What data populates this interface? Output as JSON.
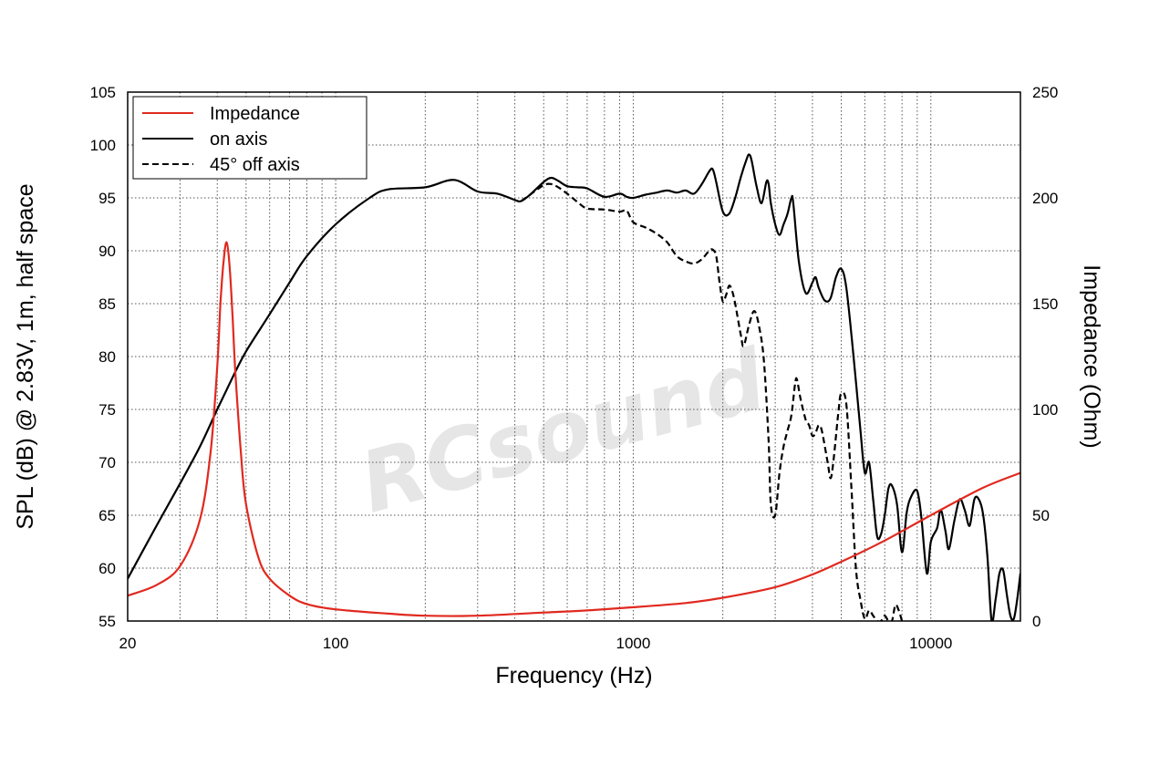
{
  "watermark": "RCsound",
  "chart_data": {
    "type": "line",
    "xlabel": "Frequency (Hz)",
    "ylabel_left": "SPL (dB) @ 2.83V, 1m, half space",
    "ylabel_right": "Impedance (Ohm)",
    "x_scale": "log",
    "xlim": [
      20,
      20000
    ],
    "ylim_left": [
      55,
      105
    ],
    "ylim_right": [
      0,
      250
    ],
    "x_ticks": [
      20,
      100,
      1000,
      10000
    ],
    "x_tick_labels": [
      "20",
      "100",
      "1000",
      "10000"
    ],
    "y_ticks_left": [
      55,
      60,
      65,
      70,
      75,
      80,
      85,
      90,
      95,
      100,
      105
    ],
    "y_tick_labels_left": [
      "55",
      "60",
      "65",
      "70",
      "75",
      "80",
      "85",
      "90",
      "95",
      "100",
      "105"
    ],
    "y_ticks_right": [
      0,
      50,
      100,
      150,
      200,
      250
    ],
    "y_tick_labels_right": [
      "0",
      "50",
      "100",
      "150",
      "200",
      "250"
    ],
    "grid": true,
    "legend_position": "top-left",
    "series": [
      {
        "name": "Impedance",
        "axis": "right",
        "color": "#e0291f",
        "style": "solid",
        "points": [
          [
            20,
            12
          ],
          [
            25,
            17
          ],
          [
            30,
            26
          ],
          [
            35,
            48
          ],
          [
            38,
            80
          ],
          [
            40,
            120
          ],
          [
            41,
            150
          ],
          [
            42,
            170
          ],
          [
            43,
            179
          ],
          [
            44,
            168
          ],
          [
            45,
            145
          ],
          [
            46,
            118
          ],
          [
            48,
            80
          ],
          [
            50,
            55
          ],
          [
            55,
            30
          ],
          [
            60,
            20
          ],
          [
            70,
            12
          ],
          [
            80,
            8
          ],
          [
            100,
            5.5
          ],
          [
            150,
            3.5
          ],
          [
            200,
            2.5
          ],
          [
            300,
            2.5
          ],
          [
            500,
            4
          ],
          [
            700,
            5
          ],
          [
            1000,
            6.5
          ],
          [
            1500,
            8.5
          ],
          [
            2000,
            11
          ],
          [
            3000,
            16
          ],
          [
            4000,
            22
          ],
          [
            5000,
            28
          ],
          [
            7000,
            38
          ],
          [
            10000,
            50
          ],
          [
            15000,
            63
          ],
          [
            20000,
            70
          ]
        ]
      },
      {
        "name": "on axis",
        "axis": "left",
        "color": "#000000",
        "style": "solid",
        "points": [
          [
            20,
            59
          ],
          [
            25,
            64
          ],
          [
            30,
            68
          ],
          [
            35,
            71.5
          ],
          [
            40,
            75
          ],
          [
            45,
            78
          ],
          [
            50,
            80.5
          ],
          [
            60,
            84
          ],
          [
            70,
            87
          ],
          [
            80,
            89.5
          ],
          [
            100,
            92.5
          ],
          [
            130,
            95
          ],
          [
            150,
            95.8
          ],
          [
            200,
            96
          ],
          [
            250,
            96.7
          ],
          [
            300,
            95.6
          ],
          [
            350,
            95.4
          ],
          [
            400,
            94.8
          ],
          [
            420,
            94.7
          ],
          [
            450,
            95.3
          ],
          [
            500,
            96.5
          ],
          [
            530,
            96.9
          ],
          [
            560,
            96.6
          ],
          [
            600,
            96.1
          ],
          [
            650,
            96
          ],
          [
            700,
            95.9
          ],
          [
            800,
            95.1
          ],
          [
            900,
            95.4
          ],
          [
            950,
            95.1
          ],
          [
            1000,
            95
          ],
          [
            1100,
            95.3
          ],
          [
            1200,
            95.5
          ],
          [
            1300,
            95.7
          ],
          [
            1400,
            95.5
          ],
          [
            1500,
            95.7
          ],
          [
            1600,
            95.4
          ],
          [
            1700,
            96.3
          ],
          [
            1800,
            97.5
          ],
          [
            1850,
            97.7
          ],
          [
            1900,
            96.5
          ],
          [
            2000,
            93.7
          ],
          [
            2100,
            93.5
          ],
          [
            2200,
            95
          ],
          [
            2300,
            97
          ],
          [
            2400,
            98.6
          ],
          [
            2450,
            99.1
          ],
          [
            2500,
            98.5
          ],
          [
            2600,
            96
          ],
          [
            2700,
            94.5
          ],
          [
            2800,
            96.5
          ],
          [
            2850,
            96.3
          ],
          [
            2900,
            94.5
          ],
          [
            3000,
            92.5
          ],
          [
            3100,
            91.5
          ],
          [
            3200,
            92.5
          ],
          [
            3300,
            93.5
          ],
          [
            3400,
            95
          ],
          [
            3450,
            94.5
          ],
          [
            3600,
            89
          ],
          [
            3800,
            86
          ],
          [
            4000,
            87
          ],
          [
            4100,
            87.5
          ],
          [
            4200,
            86.5
          ],
          [
            4400,
            85.3
          ],
          [
            4600,
            85.5
          ],
          [
            4800,
            87.5
          ],
          [
            5000,
            88.3
          ],
          [
            5200,
            86.5
          ],
          [
            5500,
            80
          ],
          [
            5800,
            73
          ],
          [
            6000,
            69
          ],
          [
            6200,
            70
          ],
          [
            6400,
            66.5
          ],
          [
            6600,
            63
          ],
          [
            6800,
            63.2
          ],
          [
            7000,
            65
          ],
          [
            7200,
            67.5
          ],
          [
            7400,
            67.8
          ],
          [
            7700,
            66
          ],
          [
            8000,
            61.5
          ],
          [
            8300,
            65.3
          ],
          [
            8600,
            66.8
          ],
          [
            9000,
            67.3
          ],
          [
            9300,
            64.7
          ],
          [
            9700,
            59.5
          ],
          [
            10000,
            62.5
          ],
          [
            10500,
            63.8
          ],
          [
            10800,
            65.5
          ],
          [
            11200,
            63.5
          ],
          [
            11500,
            61.8
          ],
          [
            12000,
            64.5
          ],
          [
            12500,
            66.5
          ],
          [
            13000,
            65.5
          ],
          [
            13500,
            64
          ],
          [
            14000,
            66.5
          ],
          [
            14500,
            66.5
          ],
          [
            15000,
            65
          ],
          [
            15500,
            61
          ],
          [
            16000,
            55
          ],
          [
            16500,
            57
          ],
          [
            17000,
            59.5
          ],
          [
            17500,
            59.8
          ],
          [
            18000,
            57.5
          ],
          [
            18500,
            55.5
          ],
          [
            19000,
            55.2
          ],
          [
            19500,
            57
          ],
          [
            20000,
            59.5
          ]
        ]
      },
      {
        "name": "45° off axis",
        "axis": "left",
        "color": "#000000",
        "style": "dashed",
        "points": [
          [
            420,
            94.7
          ],
          [
            450,
            95.3
          ],
          [
            500,
            96.2
          ],
          [
            530,
            96.3
          ],
          [
            560,
            96
          ],
          [
            600,
            95.4
          ],
          [
            650,
            94.6
          ],
          [
            700,
            94
          ],
          [
            800,
            93.9
          ],
          [
            900,
            93.7
          ],
          [
            950,
            93.8
          ],
          [
            1000,
            92.7
          ],
          [
            1100,
            92.2
          ],
          [
            1200,
            91.6
          ],
          [
            1300,
            90.8
          ],
          [
            1400,
            89.5
          ],
          [
            1500,
            89
          ],
          [
            1600,
            88.8
          ],
          [
            1700,
            89.2
          ],
          [
            1800,
            90
          ],
          [
            1850,
            90.1
          ],
          [
            1900,
            89.5
          ],
          [
            1950,
            87
          ],
          [
            2000,
            85.2
          ],
          [
            2050,
            85.8
          ],
          [
            2100,
            86.7
          ],
          [
            2150,
            86.2
          ],
          [
            2200,
            85
          ],
          [
            2300,
            82
          ],
          [
            2350,
            81
          ],
          [
            2450,
            83
          ],
          [
            2550,
            84.3
          ],
          [
            2650,
            82.8
          ],
          [
            2750,
            79.5
          ],
          [
            2850,
            72
          ],
          [
            2900,
            66
          ],
          [
            3000,
            65
          ],
          [
            3100,
            69
          ],
          [
            3200,
            71.5
          ],
          [
            3300,
            73
          ],
          [
            3400,
            74.5
          ],
          [
            3500,
            77.5
          ],
          [
            3550,
            77.8
          ],
          [
            3650,
            76
          ],
          [
            3800,
            74
          ],
          [
            3900,
            73.5
          ],
          [
            4000,
            72.5
          ],
          [
            4100,
            72.8
          ],
          [
            4200,
            73.5
          ],
          [
            4300,
            73
          ],
          [
            4500,
            70
          ],
          [
            4600,
            68.5
          ],
          [
            4700,
            70
          ],
          [
            4900,
            75
          ],
          [
            5000,
            76.5
          ],
          [
            5200,
            75.5
          ],
          [
            5400,
            68
          ],
          [
            5600,
            60
          ],
          [
            5800,
            57
          ],
          [
            6000,
            55.2
          ],
          [
            6200,
            56
          ],
          [
            6400,
            55.5
          ],
          [
            6600,
            55
          ],
          [
            6800,
            55
          ],
          [
            7000,
            55.5
          ],
          [
            7200,
            55
          ],
          [
            7400,
            55
          ],
          [
            7600,
            56.5
          ],
          [
            7800,
            56
          ],
          [
            8000,
            55
          ]
        ]
      }
    ]
  }
}
